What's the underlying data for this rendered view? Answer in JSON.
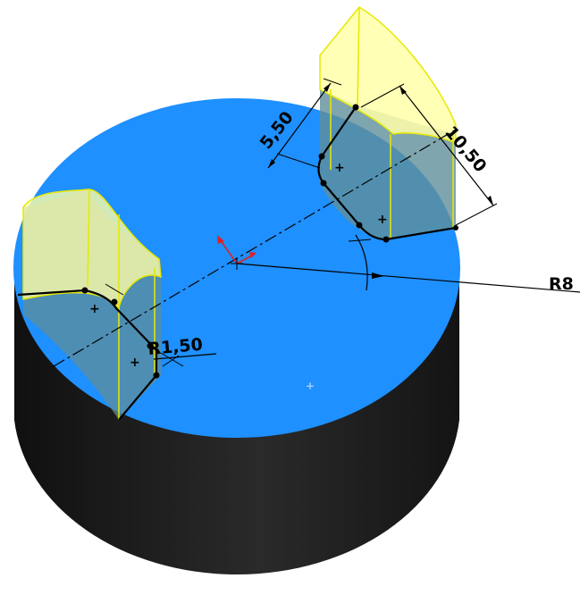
{
  "dimensions": {
    "width_dim": "5,50",
    "length_dim": "10,50",
    "fillet_radius": "R1,50",
    "outer_radius": "R8"
  },
  "colors": {
    "top_face": "#1E90FF",
    "cylinder_side": "#1a1a1a",
    "preview_fill": "#FFFFA8",
    "preview_edge": "#E8E800",
    "cut_wall": "#5F8E9A",
    "sketch_line": "#000000",
    "axis_red": "#E02020"
  },
  "icons": {
    "origin": "origin-triad-icon"
  }
}
